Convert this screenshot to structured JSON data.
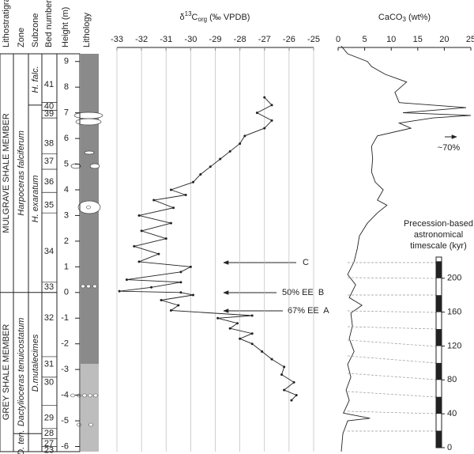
{
  "headers": {
    "lithostratigraphy": "Lithostratigraphy",
    "zone": "Zone",
    "subzone": "Subzone",
    "bed_number": "Bed number",
    "height": "Height (m)",
    "lithology": "Lithology"
  },
  "members": [
    "MULGRAVE SHALE MEMBER",
    "GREY SHALE MEMBER"
  ],
  "zones": [
    "Harpoceras falciferum",
    "Dactylioceras tenuicostatum"
  ],
  "subzones": [
    "H. falc.",
    "H. exaratum",
    "D.mutalecimes",
    "D. ten."
  ],
  "beds": [
    "41",
    "40",
    "39",
    "38",
    "37",
    "36",
    "35",
    "34",
    "33",
    "32",
    "31",
    "30",
    "29",
    "28",
    "27",
    "23"
  ],
  "chart_data": [
    {
      "type": "line",
      "title": [
        "δ",
        "13",
        "C",
        "org",
        " (‰ VPDB)"
      ],
      "xlim": [
        -33,
        -25
      ],
      "xticks": [
        -33,
        -32,
        -31,
        -30,
        -29,
        -28,
        -27,
        -26,
        -25
      ],
      "ylim": [
        -6.2,
        9.3
      ],
      "yticks": [
        -6,
        -5,
        -4,
        -3,
        -2,
        -1,
        0,
        1,
        2,
        3,
        4,
        5,
        6,
        7,
        8,
        9
      ],
      "grid": true,
      "markers": true,
      "annotations": [
        "C",
        "50% EE  B",
        "67% EE  A"
      ],
      "series": [
        {
          "color": "#222",
          "heights": [
            -4.2,
            -4.0,
            -3.8,
            -3.5,
            -3.2,
            -2.9,
            -2.6,
            -2.3,
            -2.0,
            -1.8,
            -1.6,
            -1.4,
            -1.2,
            -1.0,
            -0.9,
            -0.7,
            -0.5,
            -0.3,
            -0.1,
            0.0,
            0.05,
            0.2,
            0.4,
            0.5,
            0.8,
            1.0,
            1.2,
            1.5,
            1.8,
            2.1,
            2.4,
            2.7,
            3.0,
            3.3,
            3.6,
            3.8,
            4.0,
            4.3,
            4.6,
            4.9,
            5.2,
            5.5,
            5.8,
            6.1,
            6.4,
            6.7,
            7.0,
            7.3,
            7.6
          ],
          "values": [
            -25.9,
            -25.7,
            -26.2,
            -25.8,
            -26.3,
            -26.2,
            -26.7,
            -27.1,
            -27.5,
            -28.0,
            -27.5,
            -28.4,
            -28.1,
            -28.9,
            -27.5,
            -30.8,
            -30.5,
            -31.2,
            -29.9,
            -30.4,
            -32.9,
            -31.6,
            -30.4,
            -32.6,
            -30.4,
            -30.0,
            -32.1,
            -31.3,
            -32.3,
            -31.0,
            -32.0,
            -30.8,
            -32.1,
            -30.7,
            -31.5,
            -30.2,
            -30.8,
            -29.9,
            -29.6,
            -29.2,
            -28.8,
            -28.4,
            -28.0,
            -27.8,
            -27.0,
            -26.7,
            -27.3,
            -26.7,
            -27.0
          ]
        }
      ]
    },
    {
      "type": "line",
      "title": [
        "CaCO",
        "3",
        " (wt%)"
      ],
      "xlim": [
        0,
        25
      ],
      "xticks": [
        0,
        5,
        10,
        15,
        20,
        25
      ],
      "annotations": [
        "~70%"
      ],
      "series": [
        {
          "color": "#222",
          "heights": [
            -6.2,
            -5.5,
            -5.0,
            -4.9,
            -4.7,
            -4.2,
            -3.8,
            -3.3,
            -2.8,
            -2.3,
            -1.8,
            -1.3,
            -0.8,
            -0.5,
            -0.2,
            0.3,
            0.7,
            1.2,
            1.7,
            2.2,
            2.7,
            3.1,
            3.4,
            3.6,
            4.0,
            4.3,
            4.7,
            5.2,
            5.7,
            6.1,
            6.4,
            6.6,
            6.8,
            6.9,
            7.0,
            7.2,
            7.4,
            7.8,
            8.2,
            8.5,
            8.8,
            9.0,
            9.3,
            9.6
          ],
          "values": [
            0.6,
            0.9,
            1.8,
            6,
            1,
            2.1,
            1.5,
            2.4,
            1.8,
            3.0,
            2.1,
            2.7,
            2.4,
            4.5,
            2.1,
            3.3,
            1.8,
            3.0,
            3.6,
            4.0,
            5.5,
            7.4,
            9.2,
            7.4,
            8.5,
            7.0,
            6.3,
            6.5,
            6.3,
            7.4,
            13.7,
            11.5,
            17.9,
            25,
            12.2,
            24.1,
            11.5,
            10.7,
            12.9,
            8.9,
            6.3,
            5.5,
            1.8,
            0.6
          ]
        }
      ]
    },
    {
      "type": "scale",
      "title": [
        "Precession-based",
        "astronomical",
        "timescale (kyr)"
      ],
      "ylim": [
        0,
        225
      ],
      "yticks": [
        0,
        40,
        80,
        120,
        160,
        200
      ]
    }
  ]
}
